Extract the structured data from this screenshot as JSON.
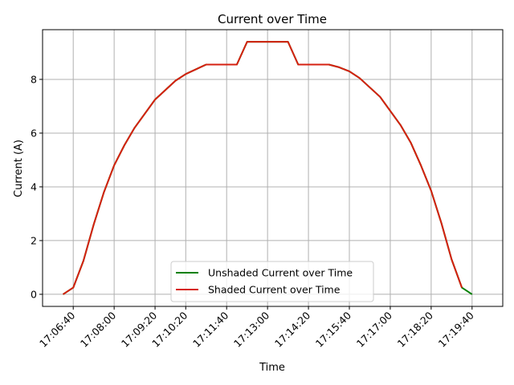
{
  "chart_data": {
    "type": "line",
    "title": "Current over Time",
    "xlabel": "Time",
    "ylabel": "Current (A)",
    "grid": true,
    "legend_placement": "lower-center",
    "xlim": [
      "17:05:40",
      "17:20:40"
    ],
    "ylim": [
      -0.45,
      9.85
    ],
    "x_ticks": [
      "17:06:40",
      "17:08:00",
      "17:09:20",
      "17:10:20",
      "17:11:40",
      "17:13:00",
      "17:14:20",
      "17:15:40",
      "17:17:00",
      "17:18:20",
      "17:19:40"
    ],
    "y_ticks": [
      0,
      2,
      4,
      6,
      8
    ],
    "series": [
      {
        "name": "Unshaded Current over Time",
        "color": "#008000",
        "points": [
          [
            "17:06:20",
            0.0
          ],
          [
            "17:06:40",
            0.25
          ],
          [
            "17:07:00",
            1.25
          ],
          [
            "17:07:20",
            2.6
          ],
          [
            "17:07:40",
            3.8
          ],
          [
            "17:08:00",
            4.8
          ],
          [
            "17:08:20",
            5.55
          ],
          [
            "17:08:40",
            6.2
          ],
          [
            "17:09:20",
            7.25
          ],
          [
            "17:10:00",
            7.95
          ],
          [
            "17:10:20",
            8.2
          ],
          [
            "17:11:00",
            8.55
          ],
          [
            "17:11:40",
            8.55
          ],
          [
            "17:12:00",
            8.55
          ],
          [
            "17:12:20",
            9.4
          ],
          [
            "17:13:00",
            9.4
          ],
          [
            "17:13:40",
            9.4
          ],
          [
            "17:14:00",
            8.55
          ],
          [
            "17:14:20",
            8.55
          ],
          [
            "17:15:00",
            8.55
          ],
          [
            "17:15:20",
            8.45
          ],
          [
            "17:15:40",
            8.3
          ],
          [
            "17:16:00",
            8.05
          ],
          [
            "17:16:40",
            7.35
          ],
          [
            "17:17:20",
            6.3
          ],
          [
            "17:17:40",
            5.65
          ],
          [
            "17:18:00",
            4.8
          ],
          [
            "17:18:20",
            3.85
          ],
          [
            "17:18:40",
            2.65
          ],
          [
            "17:19:00",
            1.3
          ],
          [
            "17:19:20",
            0.25
          ],
          [
            "17:19:40",
            0.0
          ]
        ]
      },
      {
        "name": "Shaded Current over Time",
        "color": "#d62010",
        "points": [
          [
            "17:06:20",
            0.0
          ],
          [
            "17:06:40",
            0.25
          ],
          [
            "17:07:00",
            1.25
          ],
          [
            "17:07:20",
            2.6
          ],
          [
            "17:07:40",
            3.8
          ],
          [
            "17:08:00",
            4.8
          ],
          [
            "17:08:20",
            5.55
          ],
          [
            "17:08:40",
            6.2
          ],
          [
            "17:09:20",
            7.25
          ],
          [
            "17:10:00",
            7.95
          ],
          [
            "17:10:20",
            8.2
          ],
          [
            "17:11:00",
            8.55
          ],
          [
            "17:11:40",
            8.55
          ],
          [
            "17:12:00",
            8.55
          ],
          [
            "17:12:20",
            9.4
          ],
          [
            "17:13:00",
            9.4
          ],
          [
            "17:13:40",
            9.4
          ],
          [
            "17:14:00",
            8.55
          ],
          [
            "17:14:20",
            8.55
          ],
          [
            "17:15:00",
            8.55
          ],
          [
            "17:15:20",
            8.45
          ],
          [
            "17:15:40",
            8.3
          ],
          [
            "17:16:00",
            8.05
          ],
          [
            "17:16:40",
            7.35
          ],
          [
            "17:17:20",
            6.3
          ],
          [
            "17:17:40",
            5.65
          ],
          [
            "17:18:00",
            4.8
          ],
          [
            "17:18:20",
            3.85
          ],
          [
            "17:18:40",
            2.65
          ],
          [
            "17:19:00",
            1.3
          ],
          [
            "17:19:20",
            0.25
          ]
        ]
      }
    ]
  }
}
